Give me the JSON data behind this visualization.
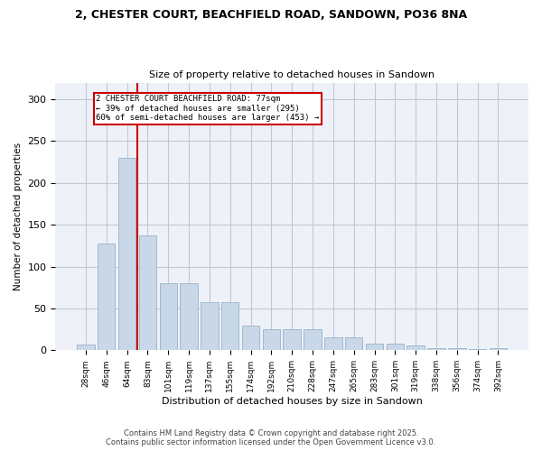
{
  "title_line1": "2, CHESTER COURT, BEACHFIELD ROAD, SANDOWN, PO36 8NA",
  "title_line2": "Size of property relative to detached houses in Sandown",
  "xlabel": "Distribution of detached houses by size in Sandown",
  "ylabel": "Number of detached properties",
  "categories": [
    "28sqm",
    "46sqm",
    "64sqm",
    "83sqm",
    "101sqm",
    "119sqm",
    "137sqm",
    "155sqm",
    "174sqm",
    "192sqm",
    "210sqm",
    "228sqm",
    "247sqm",
    "265sqm",
    "283sqm",
    "301sqm",
    "319sqm",
    "338sqm",
    "356sqm",
    "374sqm",
    "392sqm"
  ],
  "values": [
    7,
    128,
    230,
    137,
    80,
    80,
    58,
    58,
    30,
    25,
    25,
    25,
    15,
    15,
    8,
    8,
    6,
    3,
    3,
    1,
    2
  ],
  "bar_color": "#c8d8e8",
  "bar_edgecolor": "#a0b8cc",
  "vline_x": 2.5,
  "vline_color": "#cc0000",
  "annotation_text": "2 CHESTER COURT BEACHFIELD ROAD: 77sqm\n← 39% of detached houses are smaller (295)\n60% of semi-detached houses are larger (453) →",
  "annotation_box_color": "#cc0000",
  "annotation_fill": "white",
  "ylim": [
    0,
    320
  ],
  "yticks": [
    0,
    50,
    100,
    150,
    200,
    250,
    300
  ],
  "grid_color": "#c0c8d8",
  "background_color": "#eef2f8",
  "footer_line1": "Contains HM Land Registry data © Crown copyright and database right 2025.",
  "footer_line2": "Contains public sector information licensed under the Open Government Licence v3.0."
}
